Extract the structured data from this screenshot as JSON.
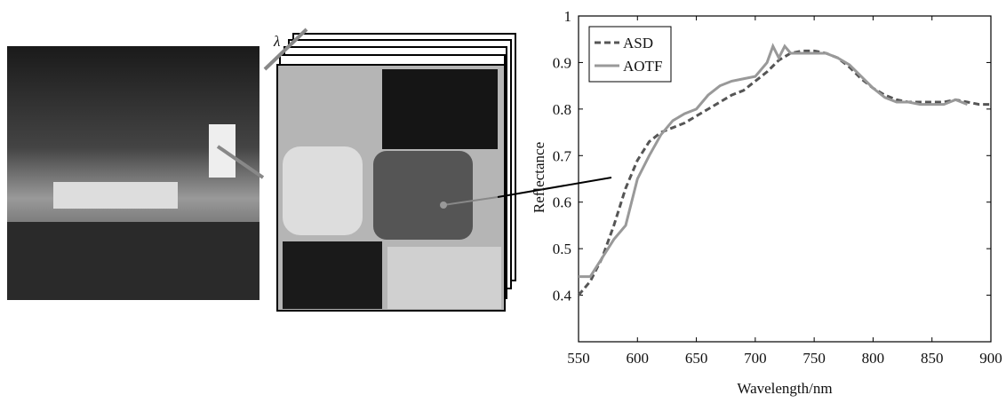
{
  "figure": {
    "lambda": "λ"
  },
  "chart_data": {
    "type": "line",
    "xlabel": "Wavelength/nm",
    "ylabel": "Reflectance",
    "xlim": [
      550,
      900
    ],
    "xticks": [
      550,
      600,
      650,
      700,
      750,
      800,
      850,
      900
    ],
    "ylim": [
      0.3,
      1
    ],
    "yticks": [
      0.4,
      0.5,
      0.6,
      0.7,
      0.8,
      0.9,
      1
    ],
    "legend": "upper left",
    "series": [
      {
        "name": "ASD",
        "color": "#555555",
        "style": "dashed",
        "x": [
          550,
          560,
          570,
          580,
          590,
          600,
          610,
          620,
          630,
          640,
          650,
          660,
          670,
          680,
          690,
          700,
          710,
          720,
          730,
          740,
          750,
          760,
          770,
          780,
          790,
          800,
          810,
          820,
          830,
          840,
          850,
          860,
          870,
          880,
          890,
          900
        ],
        "values": [
          0.4,
          0.43,
          0.48,
          0.55,
          0.63,
          0.69,
          0.73,
          0.75,
          0.76,
          0.77,
          0.785,
          0.8,
          0.815,
          0.83,
          0.84,
          0.86,
          0.88,
          0.905,
          0.92,
          0.925,
          0.925,
          0.92,
          0.91,
          0.89,
          0.865,
          0.845,
          0.83,
          0.82,
          0.815,
          0.815,
          0.815,
          0.815,
          0.82,
          0.815,
          0.81,
          0.81
        ]
      },
      {
        "name": "AOTF",
        "color": "#999999",
        "style": "solid",
        "x": [
          550,
          560,
          570,
          580,
          590,
          600,
          610,
          620,
          630,
          640,
          650,
          660,
          670,
          680,
          690,
          700,
          710,
          715,
          720,
          725,
          730,
          740,
          750,
          760,
          770,
          780,
          790,
          800,
          810,
          820,
          830,
          840,
          850,
          860,
          870,
          880
        ],
        "values": [
          0.44,
          0.44,
          0.48,
          0.52,
          0.55,
          0.65,
          0.7,
          0.745,
          0.775,
          0.79,
          0.8,
          0.83,
          0.85,
          0.86,
          0.865,
          0.87,
          0.9,
          0.935,
          0.91,
          0.935,
          0.92,
          0.92,
          0.92,
          0.92,
          0.91,
          0.895,
          0.87,
          0.845,
          0.825,
          0.815,
          0.815,
          0.81,
          0.81,
          0.81,
          0.82,
          0.81
        ]
      }
    ]
  }
}
